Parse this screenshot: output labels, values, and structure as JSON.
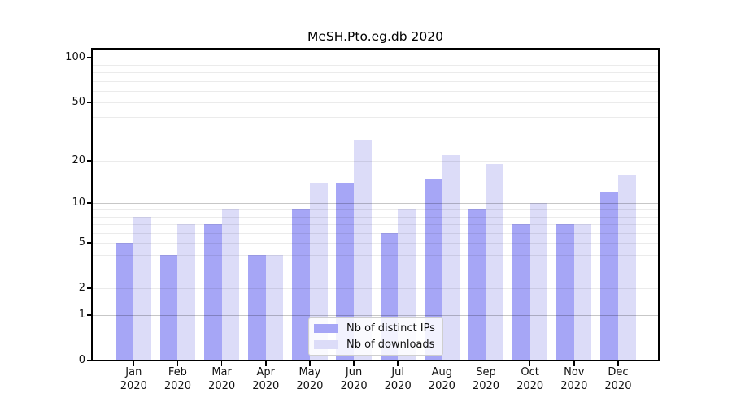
{
  "chart_data": {
    "type": "bar",
    "title": "MeSH.Pto.eg.db 2020",
    "xlabel": "",
    "ylabel": "",
    "yscale": "log1p",
    "ylim": [
      0,
      115
    ],
    "yticks": [
      100,
      50,
      20,
      10,
      5,
      2,
      1,
      0
    ],
    "grid": {
      "major": [
        1,
        10,
        100
      ],
      "minor": [
        2,
        3,
        4,
        5,
        6,
        7,
        8,
        9,
        20,
        30,
        40,
        50,
        60,
        70,
        80,
        90
      ]
    },
    "categories": [
      "Jan\n2020",
      "Feb\n2020",
      "Mar\n2020",
      "Apr\n2020",
      "May\n2020",
      "Jun\n2020",
      "Jul\n2020",
      "Aug\n2020",
      "Sep\n2020",
      "Oct\n2020",
      "Nov\n2020",
      "Dec\n2020"
    ],
    "series": [
      {
        "key": "distinct-ips",
        "name": "Nb of distinct IPs",
        "color": "#a6a6f6",
        "values": [
          5,
          4,
          7,
          4,
          9,
          14,
          6,
          15,
          9,
          7,
          7,
          12
        ]
      },
      {
        "key": "downloads",
        "name": "Nb of downloads",
        "color": "#dcdcf8",
        "values": [
          8,
          7,
          9,
          4,
          14,
          28,
          9,
          22,
          19,
          10,
          7,
          16
        ]
      }
    ],
    "legend_position": "lower center",
    "colors": {
      "background": "#ffffff",
      "axis": "#000000",
      "grid_major": "#c7c7c7",
      "grid_minor": "#ececec",
      "text": "#111111"
    }
  }
}
